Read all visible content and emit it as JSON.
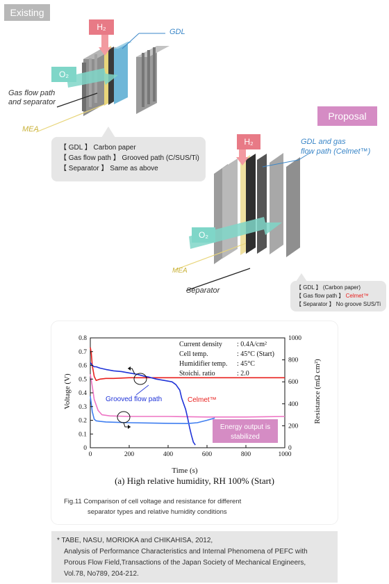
{
  "existing": {
    "tag": "Existing",
    "h2": "H₂",
    "o2": "O₂",
    "gdl_label": "GDL",
    "flow_label_1": "Gas flow path",
    "flow_label_2": "and separator",
    "mea_label": "MEA",
    "specs": [
      "【 GDL 】 Carbon paper",
      "【 Gas flow path 】 Grooved path (C/SUS/Ti)",
      "【 Separator 】 Same as above"
    ]
  },
  "proposal": {
    "tag": "Proposal",
    "h2": "H₂",
    "o2": "O₂",
    "gdl_label_1": "GDL and gas",
    "gdl_label_2": "flow path (Celmet™)",
    "mea_label": "MEA",
    "separator_label": "Separator",
    "specs": {
      "gdl": "【 GDL 】 (Carbon paper)",
      "flow_prefix": "【 Gas flow path 】",
      "flow_value": "Celmet™",
      "separator": "【 Separator 】  No groove SUS/Ti"
    }
  },
  "chart_data": {
    "type": "line",
    "xlabel": "Time (s)",
    "ylabel_left": "Voltage (V)",
    "ylabel_right": "Resistance (mΩ cm²)",
    "xlim": [
      0,
      1000
    ],
    "ylim_left": [
      0,
      0.8
    ],
    "ylim_right": [
      0,
      1000
    ],
    "x_ticks": [
      "0",
      "200",
      "400",
      "600",
      "800",
      "1000"
    ],
    "y_left_ticks": [
      "0",
      "0.1",
      "0.2",
      "0.3",
      "0.4",
      "0.5",
      "0.6",
      "0.7",
      "0.8"
    ],
    "y_right_ticks": [
      "0",
      "200",
      "400",
      "600",
      "800",
      "1000"
    ],
    "conditions": [
      {
        "key": "Current density",
        "value": ": 0.4A/cm²"
      },
      {
        "key": "Cell temp.",
        "value": ": 45°C (Start)"
      },
      {
        "key": "Humidifier temp.",
        "value": ": 45°C"
      },
      {
        "key": "Stoichi. ratio",
        "value": ": 2.0"
      }
    ],
    "annotations": {
      "grooved": "Grooved flow path",
      "celmet": "Celmet™",
      "energy_1": "Energy output is",
      "energy_2": "stabilized"
    },
    "title": "(a) High relative humidity, RH 100% (Start)",
    "series": [
      {
        "name": "Celmet™",
        "axis": "left",
        "color": "#e8201e",
        "x": [
          0,
          5,
          10,
          20,
          30,
          50,
          80,
          120,
          200,
          400,
          600,
          800,
          1000
        ],
        "y": [
          0.73,
          0.69,
          0.6,
          0.52,
          0.49,
          0.5,
          0.505,
          0.505,
          0.51,
          0.51,
          0.51,
          0.51,
          0.51
        ]
      },
      {
        "name": "Celmet™ resistance",
        "axis": "right",
        "color": "#ee74c4",
        "x": [
          0,
          10,
          20,
          40,
          60,
          100,
          200,
          400,
          600,
          800,
          1000
        ],
        "y": [
          670,
          560,
          440,
          340,
          300,
          290,
          285,
          285,
          280,
          280,
          285
        ]
      },
      {
        "name": "Grooved flow path",
        "axis": "left",
        "color": "#1f33d8",
        "x": [
          0,
          10,
          20,
          30,
          50,
          80,
          120,
          160,
          200,
          240,
          280,
          300,
          340,
          380,
          420,
          440,
          460,
          470,
          480,
          490,
          500,
          510,
          520,
          530,
          540
        ],
        "y": [
          0.62,
          0.6,
          0.59,
          0.59,
          0.58,
          0.57,
          0.56,
          0.555,
          0.545,
          0.535,
          0.52,
          0.515,
          0.5,
          0.49,
          0.48,
          0.46,
          0.42,
          0.36,
          0.32,
          0.28,
          0.22,
          0.15,
          0.09,
          0.04,
          0.02
        ]
      },
      {
        "name": "Grooved flow path resistance",
        "axis": "right",
        "color": "#3f7ef0",
        "x": [
          0,
          10,
          20,
          30,
          50,
          80,
          120,
          200,
          300,
          400,
          500,
          550,
          600,
          640
        ],
        "y": [
          470,
          330,
          260,
          245,
          240,
          235,
          232,
          228,
          225,
          222,
          220,
          228,
          250,
          270
        ]
      }
    ]
  },
  "caption": {
    "line1": "Fig.11   Comparison of cell voltage and resistance for different",
    "line2": "separator types and relative humidity conditions"
  },
  "reference": {
    "line1": "* TABE, NASU, MORIOKA and CHIKAHISA, 2012,",
    "line2": "Analysis of Performance Characteristics and Internal Phenomena of PEFC with",
    "line3": "Porous Flow Field,Transactions of the Japan Society of Mechanical Engineers,",
    "line4": "Vol.78, No789, 204-212."
  }
}
